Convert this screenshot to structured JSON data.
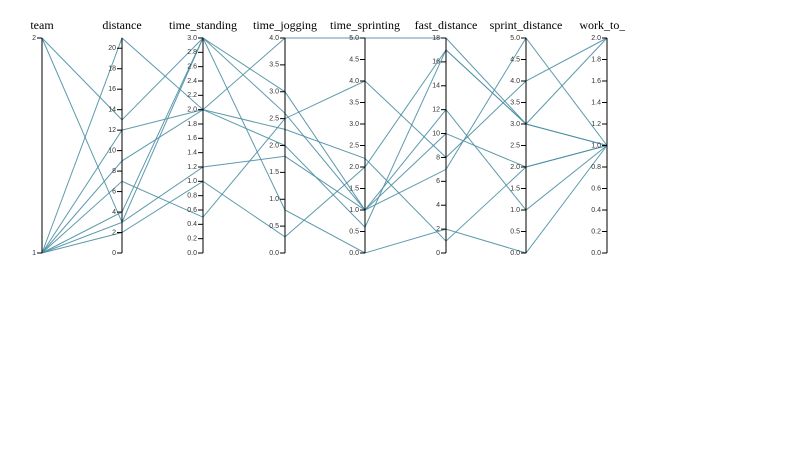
{
  "chart_data": {
    "type": "parallel-coordinates",
    "line_color": "#4b8fa3",
    "dimensions": [
      {
        "name": "team",
        "range": [
          1,
          2
        ],
        "ticks": [
          1,
          2
        ]
      },
      {
        "name": "distance",
        "range": [
          0,
          21
        ],
        "ticks": [
          0,
          2,
          4,
          6,
          8,
          10,
          12,
          14,
          16,
          18,
          20
        ]
      },
      {
        "name": "time_standing",
        "range": [
          0,
          3
        ],
        "ticks": [
          0.0,
          0.2,
          0.4,
          0.6,
          0.8,
          1.0,
          1.2,
          1.4,
          1.6,
          1.8,
          2.0,
          2.2,
          2.4,
          2.6,
          2.8,
          3.0
        ]
      },
      {
        "name": "time_jogging",
        "range": [
          0,
          4
        ],
        "ticks": [
          0.0,
          0.5,
          1.0,
          1.5,
          2.0,
          2.5,
          3.0,
          3.5,
          4.0
        ]
      },
      {
        "name": "time_sprinting",
        "range": [
          0,
          5
        ],
        "ticks": [
          0.0,
          0.5,
          1.0,
          1.5,
          2.0,
          2.5,
          3.0,
          3.5,
          4.0,
          4.5,
          5.0
        ]
      },
      {
        "name": "fast_distance",
        "range": [
          0,
          18
        ],
        "ticks": [
          0,
          2,
          4,
          6,
          8,
          10,
          12,
          14,
          16,
          18
        ]
      },
      {
        "name": "sprint_distance",
        "range": [
          0,
          5
        ],
        "ticks": [
          0.0,
          0.5,
          1.0,
          1.5,
          2.0,
          2.5,
          3.0,
          3.5,
          4.0,
          4.5,
          5.0
        ]
      },
      {
        "name": "work_to_re",
        "range": [
          0,
          2
        ],
        "ticks": [
          0.0,
          0.2,
          0.4,
          0.6,
          0.8,
          1.0,
          1.2,
          1.4,
          1.6,
          1.8,
          2.0
        ]
      }
    ],
    "records": [
      [
        1,
        21,
        2.0,
        4.0,
        5.0,
        18,
        3.0,
        1.0
      ],
      [
        2,
        13,
        3.0,
        3.0,
        1.0,
        12,
        1.0,
        1.0
      ],
      [
        1,
        12,
        2.0,
        2.3,
        2.2,
        1,
        2.0,
        1.0
      ],
      [
        1,
        9,
        2.0,
        2.0,
        0.6,
        17,
        3.0,
        1.0
      ],
      [
        1,
        7,
        0.5,
        2.5,
        4.0,
        8,
        4.0,
        2.0
      ],
      [
        1,
        4,
        3.0,
        0.8,
        0.0,
        2,
        0.0,
        1.0
      ],
      [
        2,
        3,
        1.2,
        1.8,
        1.0,
        7,
        5.0,
        1.0
      ],
      [
        1,
        2,
        1.0,
        0.3,
        2.0,
        17,
        3.0,
        2.0
      ],
      [
        1,
        3,
        3.0,
        2.6,
        1.0,
        10,
        2.0,
        1.0
      ]
    ]
  }
}
